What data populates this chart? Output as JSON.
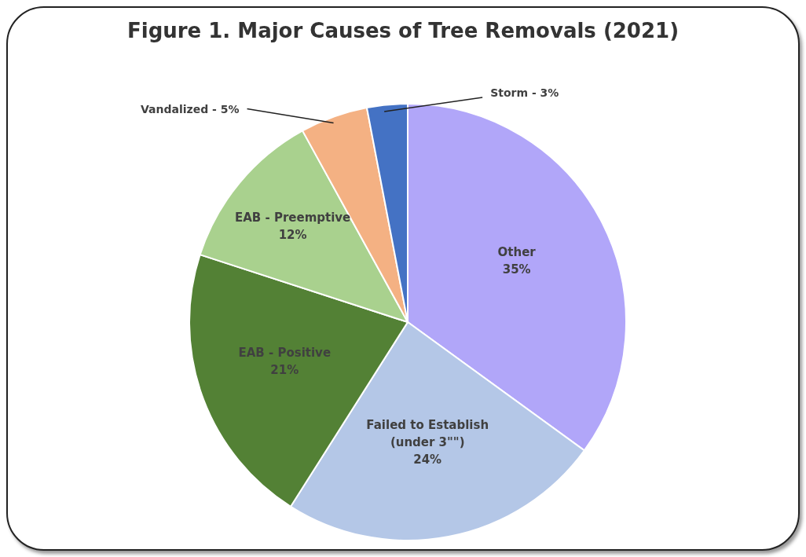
{
  "chart_data": {
    "type": "pie",
    "title": "Figure 1. Major Causes of Tree Removals (2021)",
    "categories": [
      "Other",
      "Failed to Establish (under 3\"\")",
      "EAB - Positive",
      "EAB - Preemptive",
      "Vandalized",
      "Storm"
    ],
    "values": [
      35,
      24,
      21,
      12,
      5,
      3
    ],
    "colors": [
      "#b1a6f9",
      "#b4c7e7",
      "#538135",
      "#a9d18e",
      "#f4b183",
      "#4472c4"
    ],
    "value_labels": [
      "35%",
      "24%",
      "21%",
      "12%",
      "5%",
      "3%"
    ]
  }
}
